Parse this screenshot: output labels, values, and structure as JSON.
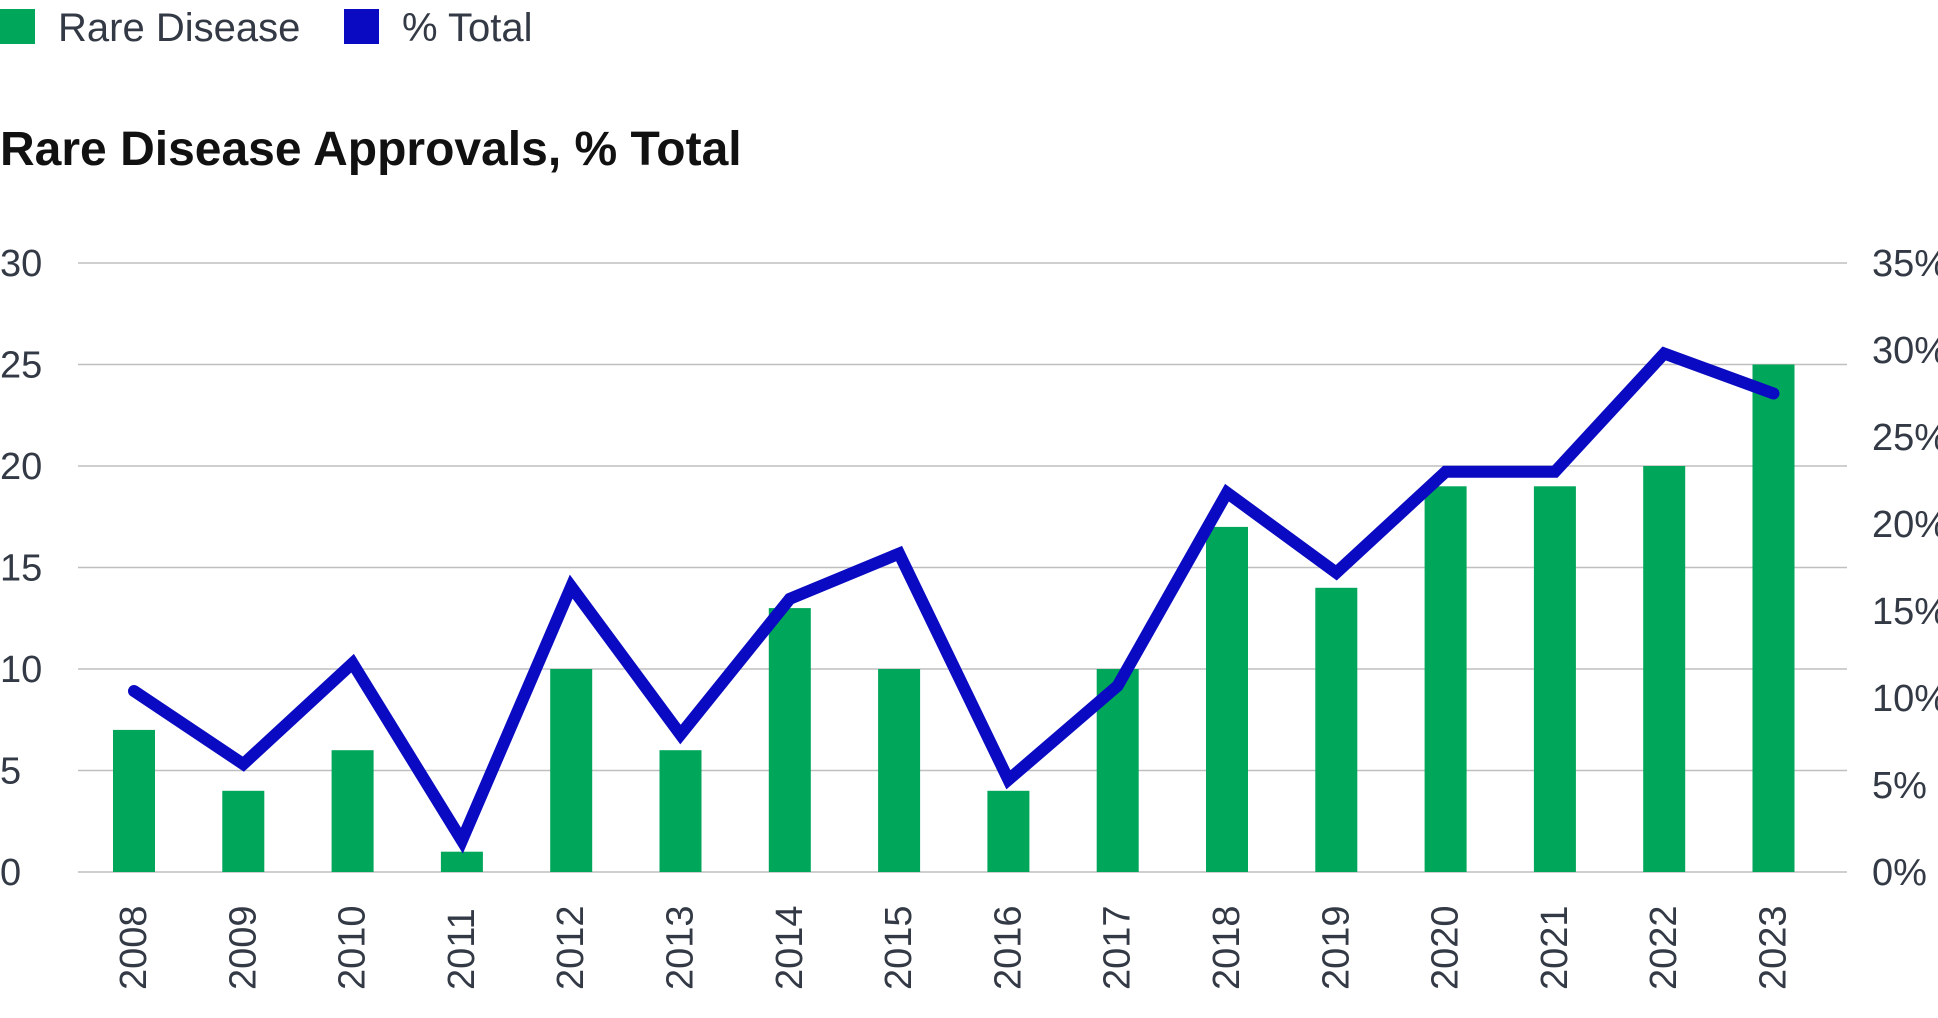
{
  "colors": {
    "bar": "#00a65a",
    "line": "#0a0ac2",
    "grid": "#bfbfbf",
    "text": "#333a45",
    "title": "#111111"
  },
  "chart_data": {
    "type": "bar",
    "title": "Rare Disease Approvals, % Total",
    "legend_position": "top-left",
    "grid": true,
    "categories": [
      "2008",
      "2009",
      "2010",
      "2011",
      "2012",
      "2013",
      "2014",
      "2015",
      "2016",
      "2017",
      "2018",
      "2019",
      "2020",
      "2021",
      "2022",
      "2023"
    ],
    "series": [
      {
        "name": "Rare Disease",
        "type": "bar",
        "axis": "left",
        "values": [
          7,
          4,
          6,
          1,
          10,
          6,
          13,
          10,
          4,
          10,
          17,
          14,
          19,
          19,
          20,
          25
        ]
      },
      {
        "name": "% Total",
        "type": "line",
        "axis": "right",
        "values": [
          10.4,
          6.2,
          12.0,
          1.8,
          16.4,
          7.9,
          15.7,
          18.3,
          5.3,
          10.7,
          21.8,
          17.2,
          23.0,
          23.0,
          29.8,
          27.5
        ]
      }
    ],
    "y_left": {
      "min": 0,
      "max": 30,
      "ticks": [
        "0",
        "5",
        "10",
        "15",
        "20",
        "25",
        "30"
      ]
    },
    "y_right": {
      "min": 0,
      "max": 35,
      "ticks": [
        "0%",
        "5%",
        "10%",
        "15%",
        "20%",
        "25%",
        "30%",
        "35%"
      ]
    }
  }
}
